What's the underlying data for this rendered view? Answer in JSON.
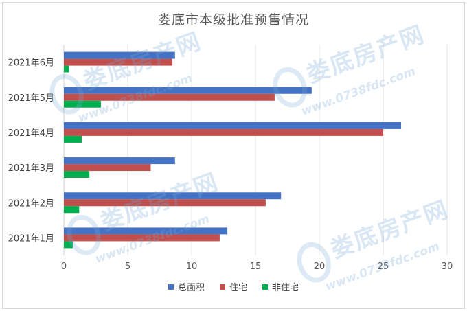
{
  "chart_data": {
    "type": "bar",
    "orientation": "horizontal",
    "title": "娄底市本级批准预售情况",
    "categories": [
      "2021年1月",
      "2021年2月",
      "2021年3月",
      "2021年4月",
      "2021年5月",
      "2021年6月"
    ],
    "series": [
      {
        "name": "总面积",
        "color": "#4472C4",
        "values": [
          12.8,
          17.0,
          8.7,
          26.4,
          19.4,
          8.7
        ]
      },
      {
        "name": "住宅",
        "color": "#C0504D",
        "values": [
          12.2,
          15.8,
          6.8,
          25.0,
          16.5,
          8.5
        ]
      },
      {
        "name": "非住宅",
        "color": "#00B050",
        "values": [
          0.7,
          1.2,
          2.0,
          1.4,
          2.9,
          0.4
        ]
      }
    ],
    "xlim": [
      0,
      30
    ],
    "xticks": [
      0,
      5,
      10,
      15,
      20,
      25,
      30
    ],
    "grid": true,
    "legend": "bottom"
  },
  "watermark": {
    "text": "娄底房产网",
    "url": "www.0738fdc.com"
  }
}
